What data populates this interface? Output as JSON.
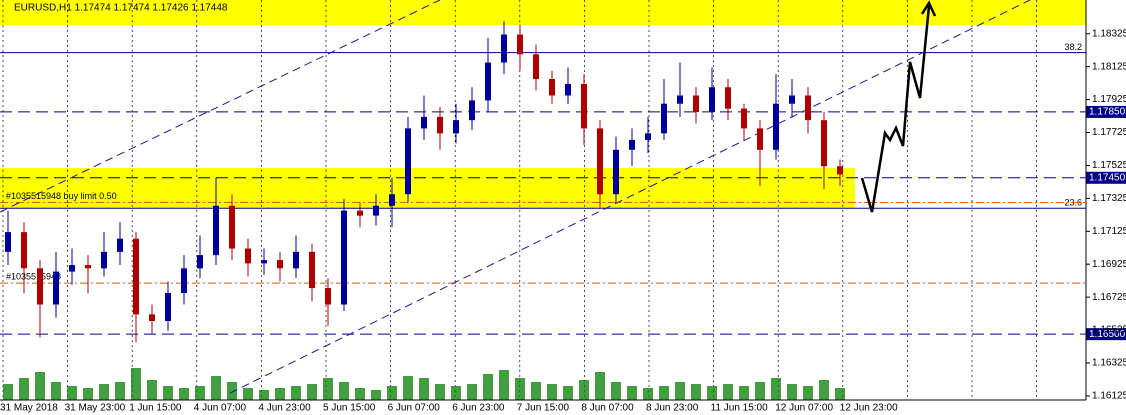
{
  "chart_data": {
    "type": "candlestick",
    "title": "EURUSD,H1  1.17474 1.17474 1.17426 1.17448",
    "ylim": [
      1.161,
      1.1853
    ],
    "yticks": [
      1.18325,
      1.18125,
      1.17925,
      1.17725,
      1.17525,
      1.17325,
      1.17125,
      1.16925,
      1.16725,
      1.16525,
      1.16325,
      1.16125
    ],
    "x_labels": [
      "31 May 2018",
      "31 May 23:00",
      "1 Jun 15:00",
      "4 Jun 07:00",
      "4 Jun 23:00",
      "5 Jun 15:00",
      "6 Jun 07:00",
      "6 Jun 23:00",
      "7 Jun 15:00",
      "8 Jun 07:00",
      "8 Jun 23:00",
      "11 Jun 15:00",
      "12 Jun 07:00",
      "12 Jun 23:00"
    ],
    "up_color": "#0000a0",
    "down_color": "#b00000",
    "open": [
      1.17,
      1.1712,
      1.169,
      1.1668,
      1.1688,
      1.1692,
      1.169,
      1.17,
      1.1708,
      1.1662,
      1.1658,
      1.1675,
      1.169,
      1.1698,
      1.1728,
      1.1702,
      1.1693,
      1.1695,
      1.169,
      1.17,
      1.1678,
      1.1668,
      1.1725,
      1.1722,
      1.1728,
      1.1735,
      1.1775,
      1.1782,
      1.1772,
      1.178,
      1.1792,
      1.1815,
      1.1832,
      1.182,
      1.1805,
      1.1795,
      1.1802,
      1.1775,
      1.1735,
      1.1762,
      1.1768,
      1.1772,
      1.179,
      1.1795,
      1.1785,
      1.18,
      1.1787,
      1.1775,
      1.1762,
      1.179,
      1.1795,
      1.178,
      1.1752
    ],
    "high": [
      1.1725,
      1.1718,
      1.1695,
      1.17,
      1.1702,
      1.1698,
      1.1712,
      1.1718,
      1.1712,
      1.1668,
      1.1682,
      1.1698,
      1.171,
      1.1745,
      1.1735,
      1.1708,
      1.1702,
      1.17,
      1.171,
      1.1705,
      1.1684,
      1.1732,
      1.173,
      1.1735,
      1.1745,
      1.1782,
      1.1795,
      1.1788,
      1.179,
      1.18,
      1.183,
      1.184,
      1.1838,
      1.1826,
      1.181,
      1.1812,
      1.1808,
      1.178,
      1.177,
      1.1775,
      1.1782,
      1.1805,
      1.1815,
      1.18,
      1.1812,
      1.1805,
      1.179,
      1.178,
      1.1808,
      1.1805,
      1.18,
      1.1785,
      1.1756
    ],
    "low": [
      1.1692,
      1.1675,
      1.1648,
      1.166,
      1.168,
      1.1675,
      1.1685,
      1.1692,
      1.1645,
      1.165,
      1.1652,
      1.1668,
      1.1684,
      1.1692,
      1.1695,
      1.1685,
      1.1686,
      1.1682,
      1.1684,
      1.167,
      1.1655,
      1.1664,
      1.1715,
      1.1716,
      1.1715,
      1.173,
      1.1768,
      1.1762,
      1.1766,
      1.1774,
      1.1785,
      1.1808,
      1.181,
      1.1798,
      1.179,
      1.179,
      1.1765,
      1.1727,
      1.173,
      1.1752,
      1.176,
      1.1768,
      1.1782,
      1.1778,
      1.178,
      1.178,
      1.1768,
      1.174,
      1.1756,
      1.1782,
      1.1772,
      1.1738,
      1.174
    ],
    "close": [
      1.1712,
      1.169,
      1.1668,
      1.1688,
      1.1692,
      1.169,
      1.17,
      1.1708,
      1.1662,
      1.1658,
      1.1675,
      1.169,
      1.1698,
      1.1728,
      1.1702,
      1.1693,
      1.1695,
      1.169,
      1.17,
      1.1678,
      1.1668,
      1.1725,
      1.1722,
      1.1728,
      1.1735,
      1.1775,
      1.1782,
      1.1772,
      1.178,
      1.1792,
      1.1815,
      1.1832,
      1.182,
      1.1805,
      1.1795,
      1.1802,
      1.1775,
      1.1735,
      1.1762,
      1.1768,
      1.1772,
      1.179,
      1.1795,
      1.1785,
      1.18,
      1.1787,
      1.1775,
      1.1762,
      1.179,
      1.1795,
      1.178,
      1.1752,
      1.1747
    ],
    "volume": [
      40,
      55,
      70,
      45,
      35,
      30,
      40,
      45,
      80,
      50,
      35,
      30,
      35,
      60,
      45,
      30,
      25,
      30,
      35,
      40,
      55,
      45,
      30,
      25,
      35,
      60,
      55,
      40,
      35,
      40,
      65,
      75,
      55,
      45,
      40,
      35,
      50,
      70,
      45,
      35,
      30,
      35,
      45,
      40,
      35,
      40,
      35,
      45,
      55,
      40,
      35,
      50,
      30
    ],
    "vlim": [
      0,
      100
    ],
    "volume_color": "#008000",
    "zones": [
      {
        "from": 1.1853,
        "to": 1.18378
      },
      {
        "from": 1.17509,
        "to": 1.17266
      }
    ],
    "zone_color": "#ffff00",
    "levels": [
      {
        "value": 1.1785,
        "label": "1.17850"
      },
      {
        "value": 1.1745,
        "label": "1.17450"
      },
      {
        "value": 1.165,
        "label": "1.16500"
      }
    ],
    "level_color": "#00008b",
    "fib_levels": [
      {
        "value": 1.1821,
        "label": "38.2"
      },
      {
        "value": 1.17265,
        "label": "23.6"
      }
    ],
    "orders": [
      {
        "value": 1.173,
        "label": "#1035515948 buy limit 0.50"
      },
      {
        "value": 1.1681,
        "label": "#1035515948"
      }
    ],
    "order_color": "#e05a00"
  }
}
